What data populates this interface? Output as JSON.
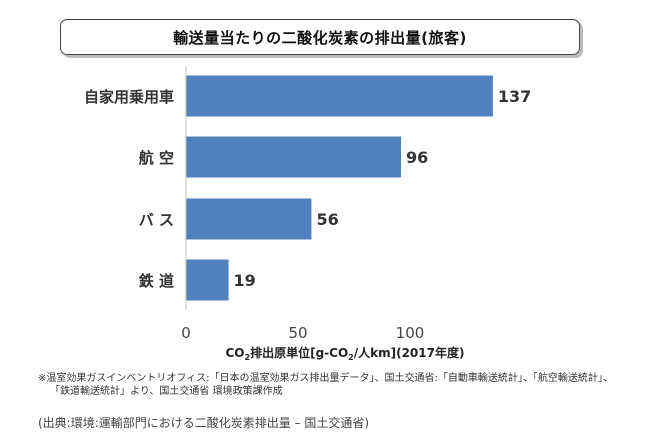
{
  "title": "輸送量当たりの二酸化炭素の排出量(旅客)",
  "colors": {
    "bar": "#4f81bd",
    "text": "#222222"
  },
  "chart_data": {
    "type": "bar",
    "orientation": "horizontal",
    "title": "輸送量当たりの二酸化炭素の排出量(旅客)",
    "categories": [
      "自家用乗用車",
      "航空",
      "バス",
      "鉄道"
    ],
    "category_labels": [
      "自家用乗用車",
      "航 空",
      "バ ス",
      "鉄 道"
    ],
    "values": [
      137,
      96,
      56,
      19
    ],
    "xlim": [
      0,
      140
    ],
    "xticks": [
      0,
      50,
      100
    ],
    "xlabel_parts": {
      "pre": "CO",
      "sub1": "2",
      "mid": "排出原単位[g-CO",
      "sub2": "2",
      "post": "/人km](2017年度)"
    },
    "grid": false,
    "legend": "none"
  },
  "footnote": {
    "line1": "※温室効果ガスインベントリオフィス:「日本の温室効果ガス排出量データ」、国土交通省:「自動車輸送統計」、「航空輸送統計」、",
    "line2": "「鉄道輸送統計」より、国土交通省 環境政策課作成"
  },
  "source": "(出典:環境:運輸部門における二酸化炭素排出量 – 国土交通省)"
}
